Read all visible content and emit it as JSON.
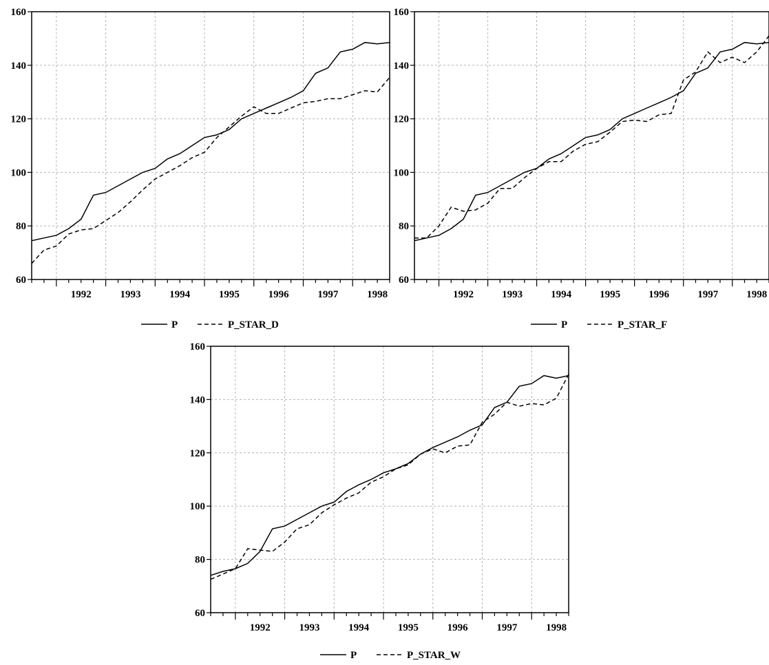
{
  "chart_data": [
    {
      "type": "line",
      "title": "",
      "xlabel": "",
      "ylabel": "",
      "xlim": [
        1991.5,
        1998.75
      ],
      "ylim": [
        60,
        160
      ],
      "grid": true,
      "legend_position": "bottom-center",
      "xticks": [
        "1992",
        "1993",
        "1994",
        "1995",
        "1996",
        "1997",
        "1998"
      ],
      "yticks": [
        "60",
        "80",
        "100",
        "120",
        "140",
        "160"
      ],
      "x": [
        1991.5,
        1991.75,
        1992.0,
        1992.25,
        1992.5,
        1992.75,
        1993.0,
        1993.25,
        1993.5,
        1993.75,
        1994.0,
        1994.25,
        1994.5,
        1994.75,
        1995.0,
        1995.25,
        1995.5,
        1995.75,
        1996.0,
        1996.25,
        1996.5,
        1996.75,
        1997.0,
        1997.25,
        1997.5,
        1997.75,
        1998.0,
        1998.25,
        1998.5,
        1998.75
      ],
      "series": [
        {
          "name": "P",
          "style": "solid",
          "values": [
            74.5,
            75.5,
            76.5,
            79,
            82.5,
            91.5,
            92.5,
            95,
            97.5,
            100,
            101.5,
            105,
            107,
            110,
            113,
            114,
            116,
            120,
            122,
            124,
            126,
            128,
            130.5,
            137,
            139,
            145,
            146,
            148.5,
            148,
            148.5
          ]
        },
        {
          "name": "P_STAR_D",
          "style": "dashed",
          "values": [
            66,
            71,
            72.5,
            77,
            78.5,
            79,
            82,
            85,
            89,
            93.5,
            97.5,
            100,
            102.5,
            105.5,
            107.5,
            113,
            117,
            121,
            124.5,
            122,
            122,
            124,
            126,
            126.5,
            127.5,
            127.5,
            129,
            130.5,
            130,
            135.5
          ]
        }
      ]
    },
    {
      "type": "line",
      "title": "",
      "xlabel": "",
      "ylabel": "",
      "xlim": [
        1991.5,
        1998.75
      ],
      "ylim": [
        60,
        160
      ],
      "grid": true,
      "legend_position": "bottom-center",
      "xticks": [
        "1992",
        "1993",
        "1994",
        "1995",
        "1996",
        "1997",
        "1998"
      ],
      "yticks": [
        "60",
        "80",
        "100",
        "120",
        "140",
        "160"
      ],
      "x": [
        1991.5,
        1991.75,
        1992.0,
        1992.25,
        1992.5,
        1992.75,
        1993.0,
        1993.25,
        1993.5,
        1993.75,
        1994.0,
        1994.25,
        1994.5,
        1994.75,
        1995.0,
        1995.25,
        1995.5,
        1995.75,
        1996.0,
        1996.25,
        1996.5,
        1996.75,
        1997.0,
        1997.25,
        1997.5,
        1997.75,
        1998.0,
        1998.25,
        1998.5,
        1998.75
      ],
      "series": [
        {
          "name": "P",
          "style": "solid",
          "values": [
            74.5,
            75.5,
            76.5,
            79,
            82.5,
            91.5,
            92.5,
            95,
            97.5,
            100,
            101.5,
            105,
            107,
            110,
            113,
            114,
            116,
            120,
            122,
            124,
            126,
            128,
            130.5,
            137,
            139,
            145,
            146,
            148.5,
            148,
            148.5
          ]
        },
        {
          "name": "P_STAR_F",
          "style": "dashed",
          "values": [
            75.5,
            75.5,
            80,
            87,
            85.5,
            86,
            88.5,
            94,
            94,
            98,
            101.5,
            104,
            104,
            108,
            110.5,
            111.5,
            115,
            119,
            119.5,
            119,
            121.5,
            122,
            134.5,
            137.5,
            145,
            141,
            143,
            141,
            145,
            151
          ]
        }
      ]
    },
    {
      "type": "line",
      "title": "",
      "xlabel": "",
      "ylabel": "",
      "xlim": [
        1991.5,
        1998.75
      ],
      "ylim": [
        60,
        160
      ],
      "grid": true,
      "legend_position": "bottom-center",
      "xticks": [
        "1992",
        "1993",
        "1994",
        "1995",
        "1996",
        "1997",
        "1998"
      ],
      "yticks": [
        "60",
        "80",
        "100",
        "120",
        "140",
        "160"
      ],
      "x": [
        1991.5,
        1991.75,
        1992.0,
        1992.25,
        1992.5,
        1992.75,
        1993.0,
        1993.25,
        1993.5,
        1993.75,
        1994.0,
        1994.25,
        1994.5,
        1994.75,
        1995.0,
        1995.25,
        1995.5,
        1995.75,
        1996.0,
        1996.25,
        1996.5,
        1996.75,
        1997.0,
        1997.25,
        1997.5,
        1997.75,
        1998.0,
        1998.25,
        1998.5,
        1998.75
      ],
      "series": [
        {
          "name": "P",
          "style": "solid",
          "values": [
            74,
            75.5,
            76.5,
            78.5,
            83,
            91.5,
            92.5,
            95,
            97.5,
            100,
            101.5,
            105.5,
            108,
            110,
            112.5,
            114,
            116,
            119.5,
            122,
            124,
            126,
            128.5,
            130.5,
            137,
            139,
            145,
            146,
            149,
            148,
            149
          ]
        },
        {
          "name": "P_STAR_W",
          "style": "dashed",
          "values": [
            72.5,
            74.5,
            76.5,
            84,
            83.5,
            83,
            86.5,
            91.5,
            93,
            97.5,
            100.5,
            103,
            105,
            109,
            111,
            114,
            115.5,
            119.5,
            121.5,
            120,
            122.5,
            123,
            131.5,
            134.5,
            139,
            137.5,
            138.5,
            138,
            140.5,
            149.5
          ]
        }
      ]
    }
  ]
}
